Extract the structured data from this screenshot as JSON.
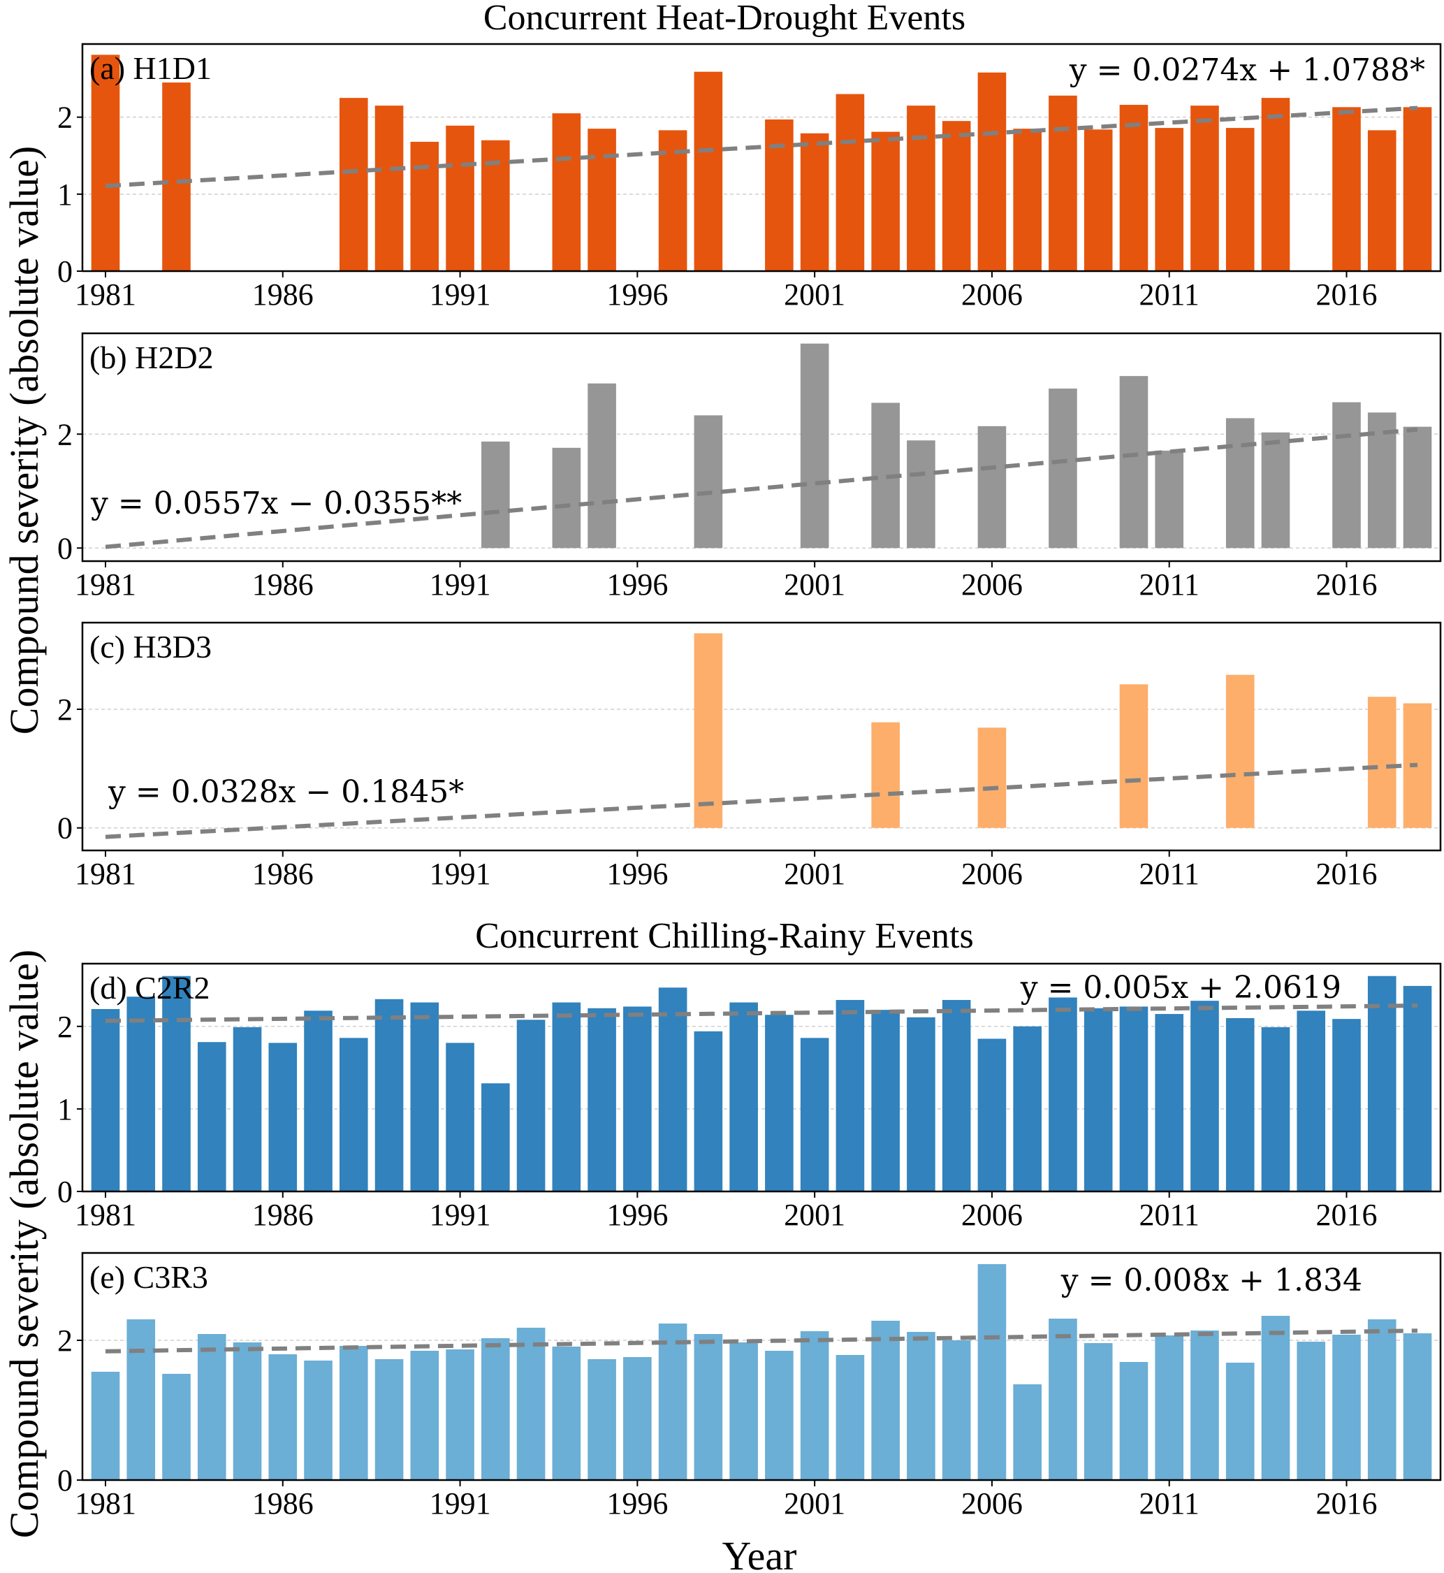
{
  "figure": {
    "ylabel": "Compound severity (absolute value)",
    "xlabel": "Year"
  },
  "chart_data": [
    {
      "type": "bar",
      "id": "a",
      "group_title": "Concurrent Heat-Drought Events",
      "panel_label": "(a) H1D1",
      "color": "#e6550d",
      "equation": "y = 0.0274x + 1.0788*",
      "trend": {
        "slope": 0.0274,
        "intercept": 1.0788,
        "significance": "*"
      },
      "xlabel": "",
      "ylabel": "Compound severity (absolute value)",
      "ylim": [
        0,
        2.95
      ],
      "yticks": [
        0,
        1,
        2
      ],
      "xticks": [
        1981,
        1986,
        1991,
        1996,
        2001,
        2006,
        2011,
        2016
      ],
      "grid": true,
      "x": [
        1981,
        1983,
        1988,
        1989,
        1990,
        1991,
        1992,
        1994,
        1995,
        1997,
        1998,
        2000,
        2001,
        2002,
        2003,
        2004,
        2005,
        2006,
        2007,
        2008,
        2009,
        2010,
        2011,
        2012,
        2013,
        2014,
        2016,
        2017,
        2018
      ],
      "values": [
        2.81,
        2.45,
        2.25,
        2.15,
        1.68,
        1.89,
        1.7,
        2.05,
        1.85,
        1.83,
        2.59,
        1.97,
        1.79,
        2.3,
        1.81,
        2.15,
        1.95,
        2.58,
        1.85,
        2.28,
        1.84,
        2.16,
        1.86,
        2.15,
        1.86,
        2.25,
        2.13,
        1.83,
        2.13
      ]
    },
    {
      "type": "bar",
      "id": "b",
      "panel_label": "(b) H2D2",
      "color": "#969696",
      "equation": "y = 0.0557x − 0.0355**",
      "trend": {
        "slope": 0.0557,
        "intercept": -0.0355,
        "significance": "**"
      },
      "xlabel": "",
      "ylim": [
        -0.23,
        3.77
      ],
      "yticks": [
        0,
        2
      ],
      "xticks": [
        1981,
        1986,
        1991,
        1996,
        2001,
        2006,
        2011,
        2016
      ],
      "grid": true,
      "x": [
        1992,
        1994,
        1995,
        1998,
        2001,
        2003,
        2004,
        2006,
        2008,
        2010,
        2011,
        2013,
        2014,
        2016,
        2017,
        2018
      ],
      "values": [
        1.87,
        1.76,
        2.89,
        2.33,
        3.59,
        2.55,
        1.89,
        2.14,
        2.8,
        3.02,
        1.71,
        2.28,
        2.03,
        2.56,
        2.38,
        2.13
      ]
    },
    {
      "type": "bar",
      "id": "c",
      "panel_label": "(c) H3D3",
      "color": "#fdae6b",
      "equation": "y = 0.0328x − 0.1845*",
      "trend": {
        "slope": 0.0328,
        "intercept": -0.1845,
        "significance": "*"
      },
      "xlabel": "",
      "ylim": [
        -0.38,
        3.46
      ],
      "yticks": [
        0,
        2
      ],
      "xticks": [
        1981,
        1986,
        1991,
        1996,
        2001,
        2006,
        2011,
        2016
      ],
      "grid": true,
      "x": [
        1998,
        2003,
        2006,
        2010,
        2013,
        2017,
        2018
      ],
      "values": [
        3.28,
        1.78,
        1.69,
        2.42,
        2.58,
        2.21,
        2.1
      ]
    },
    {
      "type": "bar",
      "id": "d",
      "group_title": "Concurrent Chilling-Rainy Events",
      "panel_label": "(d) C2R2",
      "color": "#3182bd",
      "equation": "y = 0.005x + 2.0619",
      "trend": {
        "slope": 0.005,
        "intercept": 2.0619,
        "significance": ""
      },
      "xlabel": "",
      "ylim": [
        0,
        2.76
      ],
      "yticks": [
        0,
        1,
        2
      ],
      "xticks": [
        1981,
        1986,
        1991,
        1996,
        2001,
        2006,
        2011,
        2016
      ],
      "grid": true,
      "x": [
        1981,
        1982,
        1983,
        1984,
        1985,
        1986,
        1987,
        1988,
        1989,
        1990,
        1991,
        1992,
        1993,
        1994,
        1995,
        1996,
        1997,
        1998,
        1999,
        2000,
        2001,
        2002,
        2003,
        2004,
        2005,
        2006,
        2007,
        2008,
        2009,
        2010,
        2011,
        2012,
        2013,
        2014,
        2015,
        2016,
        2017,
        2018
      ],
      "values": [
        2.21,
        2.36,
        2.61,
        1.81,
        1.99,
        1.8,
        2.19,
        1.86,
        2.33,
        2.29,
        1.8,
        1.31,
        2.08,
        2.29,
        2.22,
        2.24,
        2.47,
        1.94,
        2.29,
        2.14,
        1.86,
        2.32,
        2.2,
        2.11,
        2.32,
        1.85,
        2.0,
        2.35,
        2.22,
        2.24,
        2.15,
        2.31,
        2.1,
        1.99,
        2.19,
        2.09,
        2.61,
        2.49
      ]
    },
    {
      "type": "bar",
      "id": "e",
      "panel_label": "(e) C3R3",
      "color": "#6baed6",
      "equation": "y = 0.008x + 1.834",
      "trend": {
        "slope": 0.008,
        "intercept": 1.834,
        "significance": ""
      },
      "xlabel": "Year",
      "ylim": [
        0,
        3.25
      ],
      "yticks": [
        0,
        2
      ],
      "xticks": [
        1981,
        1986,
        1991,
        1996,
        2001,
        2006,
        2011,
        2016
      ],
      "grid": true,
      "x": [
        1981,
        1982,
        1983,
        1984,
        1985,
        1986,
        1987,
        1988,
        1989,
        1990,
        1991,
        1992,
        1993,
        1994,
        1995,
        1996,
        1997,
        1998,
        1999,
        2000,
        2001,
        2002,
        2003,
        2004,
        2005,
        2006,
        2007,
        2008,
        2009,
        2010,
        2011,
        2012,
        2013,
        2014,
        2015,
        2016,
        2017,
        2018
      ],
      "values": [
        1.55,
        2.3,
        1.52,
        2.09,
        1.97,
        1.8,
        1.71,
        1.92,
        1.73,
        1.85,
        1.87,
        2.03,
        2.18,
        1.91,
        1.73,
        1.76,
        2.24,
        2.09,
        1.97,
        1.85,
        2.13,
        1.79,
        2.28,
        2.12,
        2.0,
        3.09,
        1.37,
        2.31,
        1.96,
        1.69,
        2.07,
        2.14,
        1.68,
        2.35,
        1.98,
        2.08,
        2.3,
        2.1
      ]
    }
  ]
}
